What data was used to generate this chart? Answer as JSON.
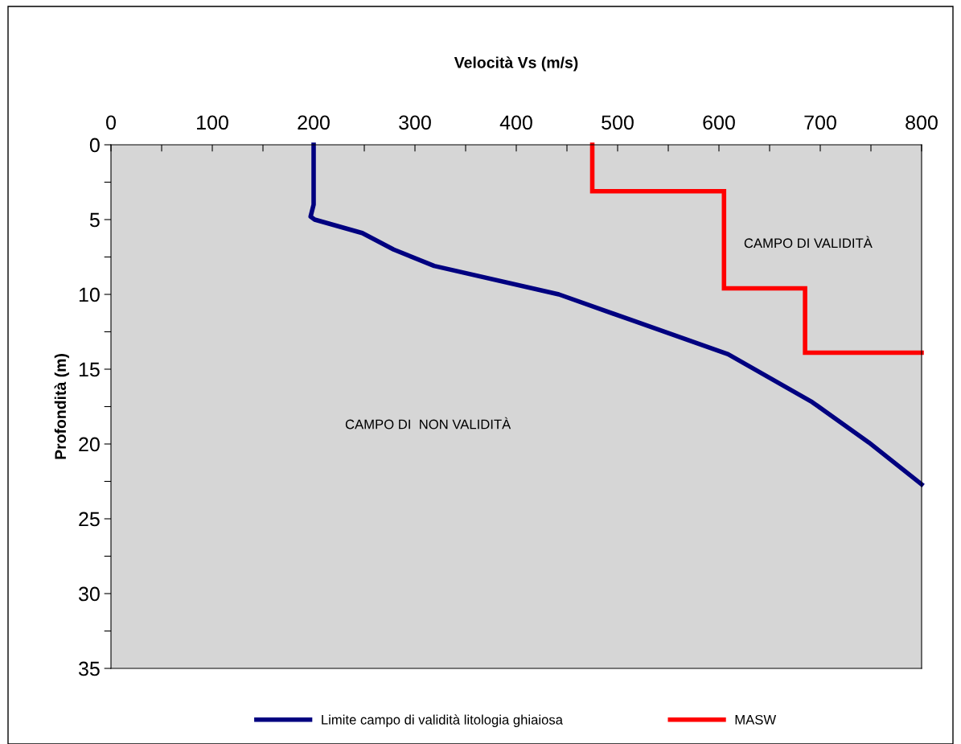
{
  "chart_data": {
    "type": "line",
    "xlabel": "Velocità Vs (m/s)",
    "ylabel": "Profondità (m)",
    "xlim": [
      0,
      800
    ],
    "ylim": [
      35,
      0
    ],
    "xticks": [
      0,
      {
        "value": 50,
        "label": null
      },
      100,
      {
        "value": 150,
        "label": null
      },
      200,
      {
        "value": 250,
        "label": null
      },
      300,
      {
        "value": 350,
        "label": null
      },
      400,
      {
        "value": 450,
        "label": null
      },
      500,
      {
        "value": 550,
        "label": null
      },
      600,
      {
        "value": 650,
        "label": null
      },
      700,
      {
        "value": 750,
        "label": null
      },
      800
    ],
    "yticks": [
      0,
      {
        "value": 2.5,
        "label": null
      },
      5,
      {
        "value": 7.5,
        "label": null
      },
      10,
      {
        "value": 12.5,
        "label": null
      },
      15,
      {
        "value": 17.5,
        "label": null
      },
      20,
      {
        "value": 22.5,
        "label": null
      },
      25,
      {
        "value": 27.5,
        "label": null
      },
      30,
      {
        "value": 32.5,
        "label": null
      },
      35
    ],
    "grid": false,
    "legend": "bottom",
    "marker": "none",
    "line_style": "solid",
    "series": [
      {
        "name": "Limite campo di validità litologia ghiaiosa",
        "color": "#000080",
        "x": [
          200,
          200,
          197,
          201,
          248,
          279,
          319,
          442,
          517,
          609,
          692,
          748,
          800
        ],
        "values": [
          0,
          4,
          4.8,
          5,
          5.9,
          7,
          8.1,
          10,
          11.8,
          14,
          17.2,
          19.9,
          22.7
        ]
      },
      {
        "name": "MASW",
        "color": "#ff0000",
        "type": "step",
        "x": [
          475,
          475,
          605,
          605,
          685,
          685,
          800
        ],
        "values": [
          0,
          3.1,
          3.1,
          9.6,
          9.6,
          13.9,
          13.9
        ]
      }
    ],
    "annotations": [
      "CAMPO DI VALIDITÀ",
      "CAMPO DI  NON VALIDITÀ"
    ]
  }
}
